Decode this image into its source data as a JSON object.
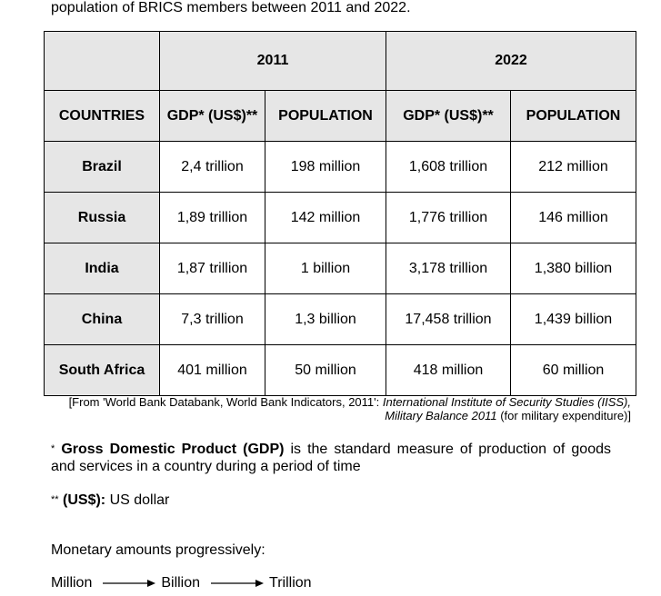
{
  "intro_text": "population of BRICS members between 2011 and 2022.",
  "table": {
    "years": [
      "2011",
      "2022"
    ],
    "headers": {
      "countries": "COUNTRIES",
      "gdp": "GDP* (US$)**",
      "population": "POPULATION"
    },
    "rows": [
      {
        "country": "Brazil",
        "gdp2011": "2,4 trillion",
        "pop2011": "198 million",
        "gdp2022": "1,608 trillion",
        "pop2022": "212 million"
      },
      {
        "country": "Russia",
        "gdp2011": "1,89 trillion",
        "pop2011": "142 million",
        "gdp2022": "1,776 trillion",
        "pop2022": "146 million"
      },
      {
        "country": "India",
        "gdp2011": "1,87 trillion",
        "pop2011": "1 billion",
        "gdp2022": "3,178 trillion",
        "pop2022": "1,380 billion"
      },
      {
        "country": "China",
        "gdp2011": "7,3 trillion",
        "pop2011": "1,3 billion",
        "gdp2022": "17,458 trillion",
        "pop2022": "1,439 billion"
      },
      {
        "country": "South Africa",
        "gdp2011": "401 million",
        "pop2011": "50 million",
        "gdp2022": "418 million",
        "pop2022": "60 million"
      }
    ]
  },
  "source": {
    "prefix": "[From 'World Bank Databank, World Bank Indicators, 2011': ",
    "italic1": "International Institute of Security Studies (IISS),",
    "italic2": "Military Balance 2011",
    "suffix": " (for military expenditure)]"
  },
  "notes": {
    "gdp_marker": "*",
    "gdp_term": "Gross Domestic Product (GDP)",
    "gdp_def": " is the standard measure of production of goods and services in a country during a period of time",
    "usd_marker": "**",
    "usd_term": "(US$):",
    "usd_def": " US dollar"
  },
  "monetary": {
    "label": "Monetary amounts progressively:",
    "scale": [
      "Million",
      "Billion",
      "Trillion"
    ]
  }
}
